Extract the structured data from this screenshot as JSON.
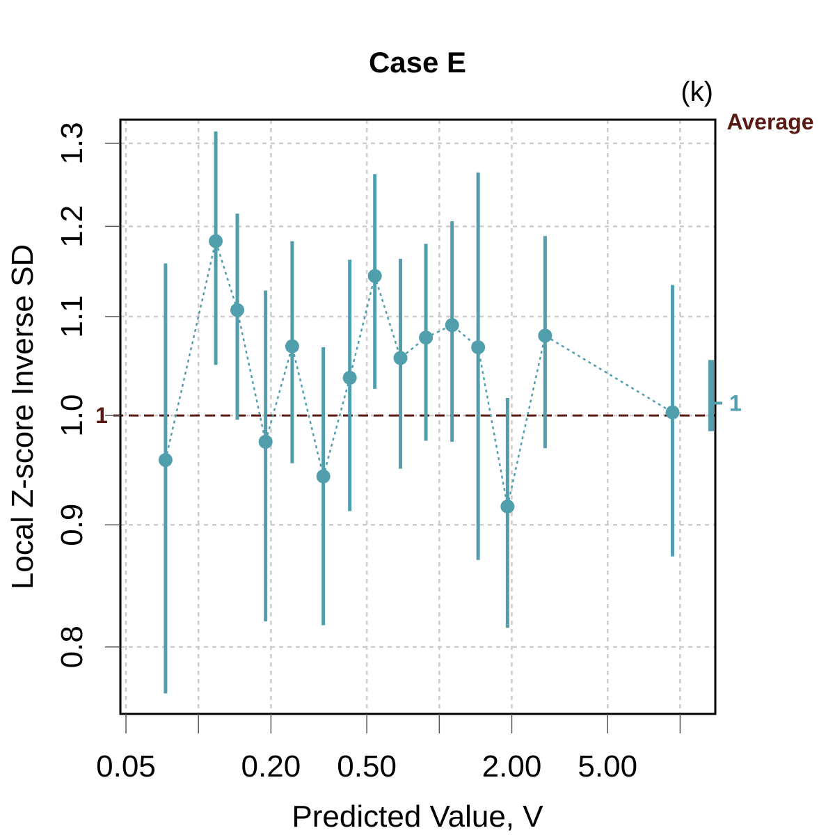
{
  "chart_data": {
    "type": "scatter",
    "title": "Case E",
    "panel_label": "(k)",
    "xlabel": "Predicted Value, V",
    "ylabel": "Local Z-score Inverse SD",
    "x_scale": "log",
    "y_scale": "log",
    "xlim": [
      0.05,
      14
    ],
    "ylim": [
      0.75,
      1.33
    ],
    "x_ticks": [
      0.05,
      0.1,
      0.2,
      0.5,
      1,
      2,
      5,
      10
    ],
    "x_tick_labels": [
      "0.05",
      "",
      "0.20",
      "0.50",
      "",
      "2.00",
      "5.00",
      ""
    ],
    "y_ticks": [
      0.8,
      0.9,
      1.0,
      1.1,
      1.2,
      1.3
    ],
    "y_tick_labels": [
      "0.8",
      "0.9",
      "1.0",
      "1.1",
      "1.2",
      "1.3"
    ],
    "grid": true,
    "reference_line": {
      "value": 1.0,
      "label": "1",
      "color": "#5a1a14",
      "style": "dashed"
    },
    "average": {
      "label": "Average",
      "value": 1.0,
      "value_label": "1",
      "lower": 0.985,
      "upper": 1.055,
      "color": "#5a1a14"
    },
    "series": [
      {
        "name": "Local Z-score Inverse SD",
        "color": "#519ead",
        "points": [
          {
            "x": 0.073,
            "y": 0.958,
            "lower": 0.765,
            "upper": 1.158
          },
          {
            "x": 0.118,
            "y": 1.183,
            "lower": 1.05,
            "upper": 1.315
          },
          {
            "x": 0.145,
            "y": 1.107,
            "lower": 0.996,
            "upper": 1.215
          },
          {
            "x": 0.19,
            "y": 0.975,
            "lower": 0.82,
            "upper": 1.128
          },
          {
            "x": 0.245,
            "y": 1.069,
            "lower": 0.955,
            "upper": 1.183
          },
          {
            "x": 0.33,
            "y": 0.943,
            "lower": 0.817,
            "upper": 1.068
          },
          {
            "x": 0.425,
            "y": 1.037,
            "lower": 0.912,
            "upper": 1.162
          },
          {
            "x": 0.54,
            "y": 1.144,
            "lower": 1.026,
            "upper": 1.262
          },
          {
            "x": 0.69,
            "y": 1.057,
            "lower": 0.95,
            "upper": 1.163
          },
          {
            "x": 0.88,
            "y": 1.078,
            "lower": 0.976,
            "upper": 1.18
          },
          {
            "x": 1.13,
            "y": 1.091,
            "lower": 0.975,
            "upper": 1.206
          },
          {
            "x": 1.45,
            "y": 1.068,
            "lower": 0.87,
            "upper": 1.264
          },
          {
            "x": 1.92,
            "y": 0.916,
            "lower": 0.815,
            "upper": 1.017
          },
          {
            "x": 2.75,
            "y": 1.08,
            "lower": 0.969,
            "upper": 1.189
          },
          {
            "x": 9.3,
            "y": 1.003,
            "lower": 0.873,
            "upper": 1.134
          }
        ]
      }
    ]
  }
}
